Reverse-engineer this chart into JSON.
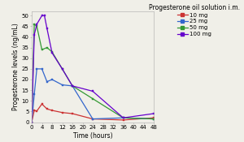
{
  "title": "Progesterone oil solution i.m.",
  "xlabel": "Time (hours)",
  "ylabel": "Progesterone levels (ng/mL)",
  "series": [
    {
      "label": "10 mg",
      "color": "#cc3333",
      "marker": "s",
      "x": [
        0,
        1,
        2,
        4,
        6,
        8,
        12,
        16,
        24,
        36,
        48
      ],
      "y": [
        0,
        5.5,
        5.2,
        8.5,
        6.2,
        5.5,
        4.5,
        4.0,
        1.5,
        1.0,
        2.0
      ]
    },
    {
      "label": "25 mg",
      "color": "#3366cc",
      "marker": "s",
      "x": [
        0,
        1,
        2,
        4,
        6,
        8,
        12,
        16,
        24,
        36,
        48
      ],
      "y": [
        0,
        13.0,
        25.0,
        25.0,
        19.0,
        20.0,
        17.5,
        17.0,
        1.5,
        2.0,
        1.5
      ]
    },
    {
      "label": "50 mg",
      "color": "#339933",
      "marker": "s",
      "x": [
        0,
        1,
        2,
        4,
        6,
        8,
        12,
        16,
        24,
        36,
        48
      ],
      "y": [
        0,
        46.0,
        45.0,
        34.0,
        35.0,
        33.0,
        25.0,
        17.0,
        11.0,
        2.0,
        1.5
      ]
    },
    {
      "label": "100 mg",
      "color": "#6600cc",
      "marker": "s",
      "x": [
        0,
        1,
        2,
        4,
        5,
        6,
        8,
        12,
        16,
        24,
        36,
        48
      ],
      "y": [
        0,
        41.0,
        46.0,
        50.0,
        50.0,
        44.0,
        32.5,
        25.0,
        17.0,
        14.5,
        2.0,
        4.0
      ]
    }
  ],
  "xlim": [
    0,
    48
  ],
  "ylim": [
    0,
    52
  ],
  "xticks": [
    0,
    4,
    8,
    12,
    16,
    20,
    24,
    28,
    32,
    36,
    40,
    44,
    48
  ],
  "yticks": [
    0,
    5,
    10,
    15,
    20,
    25,
    30,
    35,
    40,
    45,
    50
  ],
  "bg_color": "#f0efe8",
  "legend_title_fontsize": 5.5,
  "legend_fontsize": 5.0,
  "axis_label_fontsize": 5.5,
  "tick_fontsize": 5.0,
  "linewidth": 0.9,
  "markersize": 2.0
}
